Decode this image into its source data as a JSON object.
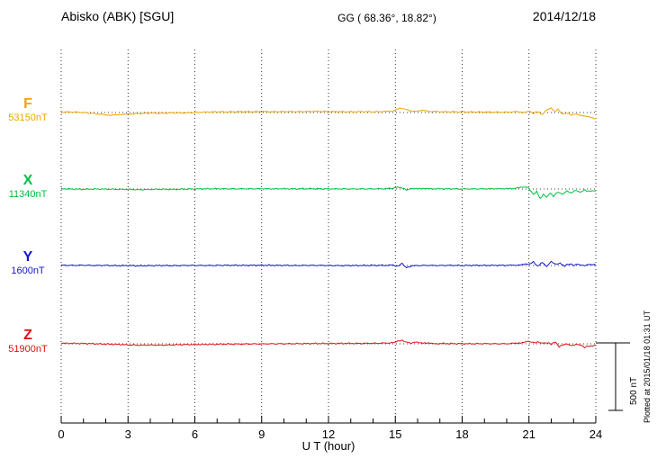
{
  "header": {
    "title": "Abisko (ABK)  [SGU]",
    "coords": "GG ( 68.36°,  18.82°)",
    "date": "2014/12/18"
  },
  "footnote": "Plotted at 2015/01/18 01:31 UT",
  "chart_data": {
    "type": "line",
    "title": "Abisko (ABK) [SGU] magnetogram",
    "xlabel": "U T (hour)",
    "x_range": [
      0,
      24
    ],
    "x_ticks": [
      0,
      3,
      6,
      9,
      12,
      15,
      18,
      21,
      24
    ],
    "x_minor_step": 1,
    "grid": "vertical-dotted",
    "scale_bar": {
      "label": "500 nT",
      "nT": 500
    },
    "series": [
      {
        "name": "F",
        "baseline_label": "53150nT",
        "color": "#f0a500",
        "units": "nT deviation from baseline",
        "points": [
          [
            0,
            5
          ],
          [
            0.5,
            3
          ],
          [
            1,
            0
          ],
          [
            1.5,
            -8
          ],
          [
            2,
            -17
          ],
          [
            2.3,
            -20
          ],
          [
            2.7,
            -14
          ],
          [
            3,
            -12
          ],
          [
            3.5,
            -8
          ],
          [
            4,
            -4
          ],
          [
            4.5,
            -6
          ],
          [
            5,
            -3
          ],
          [
            5.5,
            -4
          ],
          [
            6,
            0
          ],
          [
            6.5,
            3
          ],
          [
            7,
            5
          ],
          [
            7.5,
            4
          ],
          [
            8,
            6
          ],
          [
            8.5,
            5
          ],
          [
            9,
            7
          ],
          [
            9.5,
            6
          ],
          [
            10,
            7
          ],
          [
            10.5,
            6
          ],
          [
            11,
            7
          ],
          [
            11.5,
            8
          ],
          [
            12,
            7
          ],
          [
            12.5,
            6
          ],
          [
            13,
            5
          ],
          [
            13.5,
            6
          ],
          [
            14,
            5
          ],
          [
            14.5,
            7
          ],
          [
            14.9,
            12
          ],
          [
            15.2,
            30
          ],
          [
            15.4,
            24
          ],
          [
            15.7,
            12
          ],
          [
            16,
            10
          ],
          [
            16.3,
            14
          ],
          [
            16.6,
            8
          ],
          [
            17,
            6
          ],
          [
            17.5,
            5
          ],
          [
            18,
            4
          ],
          [
            18.5,
            3
          ],
          [
            19,
            3
          ],
          [
            19.5,
            2
          ],
          [
            20,
            2
          ],
          [
            20.4,
            6
          ],
          [
            20.7,
            0
          ],
          [
            21,
            10
          ],
          [
            21.2,
            -6
          ],
          [
            21.4,
            8
          ],
          [
            21.6,
            -14
          ],
          [
            21.8,
            20
          ],
          [
            22,
            34
          ],
          [
            22.15,
            10
          ],
          [
            22.3,
            24
          ],
          [
            22.5,
            -12
          ],
          [
            22.7,
            -4
          ],
          [
            22.9,
            -16
          ],
          [
            23.1,
            -8
          ],
          [
            23.4,
            -24
          ],
          [
            23.7,
            -34
          ],
          [
            24,
            -44
          ]
        ]
      },
      {
        "name": "X",
        "baseline_label": "11340nT",
        "color": "#00c044",
        "units": "nT deviation from baseline",
        "points": [
          [
            0,
            2
          ],
          [
            0.5,
            0
          ],
          [
            1,
            -2
          ],
          [
            1.5,
            0
          ],
          [
            2,
            -1
          ],
          [
            2.5,
            -3
          ],
          [
            3,
            -2
          ],
          [
            3.5,
            -6
          ],
          [
            4,
            -3
          ],
          [
            4.5,
            -2
          ],
          [
            5,
            -3
          ],
          [
            5.5,
            -1
          ],
          [
            6,
            0
          ],
          [
            6.5,
            1
          ],
          [
            7,
            2
          ],
          [
            7.5,
            1
          ],
          [
            8,
            1
          ],
          [
            8.5,
            2
          ],
          [
            9,
            2
          ],
          [
            9.5,
            1
          ],
          [
            10,
            2
          ],
          [
            10.5,
            1
          ],
          [
            11,
            2
          ],
          [
            11.5,
            2
          ],
          [
            12,
            1
          ],
          [
            12.5,
            1
          ],
          [
            13,
            0
          ],
          [
            13.5,
            1
          ],
          [
            14,
            1
          ],
          [
            14.5,
            2
          ],
          [
            14.9,
            5
          ],
          [
            15.1,
            16
          ],
          [
            15.3,
            9
          ],
          [
            15.5,
            -7
          ],
          [
            15.7,
            2
          ],
          [
            16,
            5
          ],
          [
            16.3,
            1
          ],
          [
            16.6,
            2
          ],
          [
            17,
            1
          ],
          [
            17.5,
            1
          ],
          [
            18,
            0
          ],
          [
            18.5,
            1
          ],
          [
            19,
            1
          ],
          [
            19.5,
            2
          ],
          [
            20,
            2
          ],
          [
            20.4,
            6
          ],
          [
            20.7,
            12
          ],
          [
            20.9,
            16
          ],
          [
            21.05,
            -8
          ],
          [
            21.2,
            -38
          ],
          [
            21.35,
            -16
          ],
          [
            21.5,
            -72
          ],
          [
            21.65,
            -42
          ],
          [
            21.8,
            -62
          ],
          [
            21.95,
            -28
          ],
          [
            22.1,
            -52
          ],
          [
            22.3,
            -22
          ],
          [
            22.5,
            -40
          ],
          [
            22.7,
            -14
          ],
          [
            22.9,
            -30
          ],
          [
            23.1,
            -10
          ],
          [
            23.3,
            -24
          ],
          [
            23.5,
            -8
          ],
          [
            23.7,
            -18
          ],
          [
            24,
            -14
          ]
        ]
      },
      {
        "name": "Y",
        "baseline_label": "1600nT",
        "color": "#1515cc",
        "units": "nT deviation from baseline",
        "points": [
          [
            0,
            2
          ],
          [
            0.5,
            1
          ],
          [
            1,
            2
          ],
          [
            1.5,
            0
          ],
          [
            2,
            1
          ],
          [
            2.5,
            -1
          ],
          [
            3,
            0
          ],
          [
            3.5,
            -2
          ],
          [
            4,
            -1
          ],
          [
            4.5,
            0
          ],
          [
            5,
            -1
          ],
          [
            5.5,
            0
          ],
          [
            6,
            1
          ],
          [
            6.5,
            0
          ],
          [
            7,
            1
          ],
          [
            7.5,
            2
          ],
          [
            8,
            1
          ],
          [
            8.5,
            1
          ],
          [
            9,
            2
          ],
          [
            9.5,
            1
          ],
          [
            10,
            1
          ],
          [
            10.5,
            0
          ],
          [
            11,
            1
          ],
          [
            11.5,
            1
          ],
          [
            12,
            0
          ],
          [
            12.5,
            -1
          ],
          [
            13,
            0
          ],
          [
            13.5,
            0
          ],
          [
            14,
            1
          ],
          [
            14.5,
            1
          ],
          [
            14.9,
            3
          ],
          [
            15.1,
            -8
          ],
          [
            15.3,
            14
          ],
          [
            15.5,
            -16
          ],
          [
            15.7,
            -6
          ],
          [
            16,
            0
          ],
          [
            16.5,
            1
          ],
          [
            17,
            0
          ],
          [
            17.5,
            1
          ],
          [
            18,
            0
          ],
          [
            18.5,
            1
          ],
          [
            19,
            0
          ],
          [
            19.5,
            1
          ],
          [
            20,
            1
          ],
          [
            20.4,
            3
          ],
          [
            20.7,
            6
          ],
          [
            21,
            10
          ],
          [
            21.2,
            26
          ],
          [
            21.4,
            -6
          ],
          [
            21.6,
            22
          ],
          [
            21.8,
            -8
          ],
          [
            22,
            30
          ],
          [
            22.2,
            8
          ],
          [
            22.4,
            18
          ],
          [
            22.6,
            -4
          ],
          [
            22.8,
            12
          ],
          [
            23,
            2
          ],
          [
            23.2,
            10
          ],
          [
            23.5,
            0
          ],
          [
            23.7,
            8
          ],
          [
            24,
            4
          ]
        ]
      },
      {
        "name": "Z",
        "baseline_label": "51900nT",
        "color": "#dd1111",
        "units": "nT deviation from baseline",
        "points": [
          [
            0,
            4
          ],
          [
            0.5,
            3
          ],
          [
            1,
            2
          ],
          [
            1.5,
            0
          ],
          [
            2,
            -2
          ],
          [
            2.5,
            -4
          ],
          [
            3,
            -8
          ],
          [
            3.5,
            -10
          ],
          [
            4,
            -9
          ],
          [
            4.5,
            -10
          ],
          [
            5,
            -8
          ],
          [
            5.5,
            -6
          ],
          [
            6,
            -5
          ],
          [
            6.5,
            -4
          ],
          [
            7,
            -3
          ],
          [
            7.5,
            -2
          ],
          [
            8,
            -2
          ],
          [
            8.5,
            -1
          ],
          [
            9,
            -1
          ],
          [
            9.5,
            0
          ],
          [
            10,
            0
          ],
          [
            10.5,
            1
          ],
          [
            11,
            1
          ],
          [
            11.5,
            2
          ],
          [
            12,
            2
          ],
          [
            12.5,
            3
          ],
          [
            13,
            3
          ],
          [
            13.5,
            3
          ],
          [
            14,
            4
          ],
          [
            14.5,
            5
          ],
          [
            14.9,
            8
          ],
          [
            15.1,
            18
          ],
          [
            15.3,
            24
          ],
          [
            15.5,
            12
          ],
          [
            15.7,
            6
          ],
          [
            15.9,
            16
          ],
          [
            16.1,
            10
          ],
          [
            16.4,
            4
          ],
          [
            16.7,
            2
          ],
          [
            17,
            2
          ],
          [
            17.5,
            1
          ],
          [
            18,
            1
          ],
          [
            18.5,
            0
          ],
          [
            19,
            1
          ],
          [
            19.5,
            0
          ],
          [
            20,
            1
          ],
          [
            20.4,
            4
          ],
          [
            20.7,
            10
          ],
          [
            21,
            18
          ],
          [
            21.2,
            8
          ],
          [
            21.4,
            12
          ],
          [
            21.6,
            4
          ],
          [
            21.8,
            8
          ],
          [
            22,
            -2
          ],
          [
            22.2,
            14
          ],
          [
            22.35,
            -22
          ],
          [
            22.5,
            -10
          ],
          [
            22.7,
            0
          ],
          [
            22.9,
            -14
          ],
          [
            23.1,
            -4
          ],
          [
            23.3,
            -8
          ],
          [
            23.5,
            -26
          ],
          [
            23.7,
            -16
          ],
          [
            24,
            -12
          ]
        ]
      }
    ]
  }
}
